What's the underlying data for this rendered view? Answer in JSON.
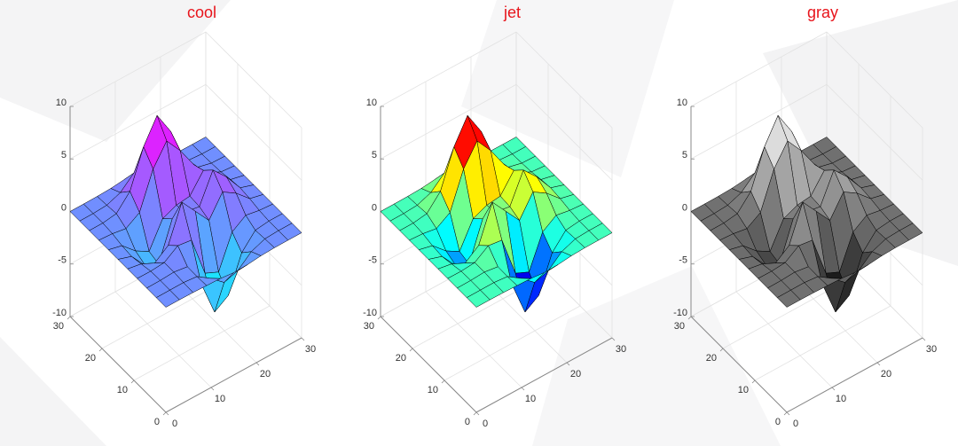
{
  "chart_data": [
    {
      "type": "surface",
      "title": "cool",
      "colormap": "cool",
      "x": [
        0,
        3,
        6,
        9,
        12,
        15,
        18,
        21,
        24,
        27,
        30
      ],
      "y": [
        0,
        3,
        6,
        9,
        12,
        15,
        18,
        21,
        24,
        27,
        30
      ],
      "z": [
        [
          0,
          0,
          -0.02,
          -0.07,
          -0.11,
          -0.25,
          -0.21,
          -0.07,
          -0.01,
          0,
          0
        ],
        [
          0,
          0.01,
          0.02,
          -0.12,
          -1.0,
          -2.09,
          -1.7,
          -0.58,
          -0.08,
          0,
          0
        ],
        [
          0,
          0.02,
          0.1,
          -0.09,
          -2.38,
          -5.83,
          -4.97,
          -1.6,
          -0.17,
          0,
          0
        ],
        [
          0,
          -0.02,
          0.1,
          1.0,
          0.81,
          -3.05,
          -3.64,
          -0.54,
          0.35,
          0.1,
          0
        ],
        [
          0,
          -0.24,
          -0.86,
          0.12,
          3.52,
          1.93,
          0.36,
          2.36,
          1.54,
          0.31,
          0
        ],
        [
          0,
          -0.43,
          -1.98,
          -2.58,
          1.02,
          0.98,
          0.77,
          3.54,
          2.17,
          0.43,
          0
        ],
        [
          0,
          -0.32,
          -1.53,
          -2.29,
          0.13,
          0.69,
          0.85,
          2.59,
          1.52,
          0.3,
          0
        ],
        [
          0,
          -0.09,
          -0.31,
          0.51,
          3.93,
          5.9,
          4.27,
          2.23,
          0.74,
          0.12,
          0
        ],
        [
          0,
          0.01,
          0.2,
          1.61,
          5.14,
          7.41,
          5.2,
          1.89,
          0.37,
          0.04,
          0
        ],
        [
          0,
          0.01,
          0.09,
          0.58,
          1.75,
          2.51,
          1.75,
          0.61,
          0.11,
          0,
          0
        ],
        [
          0,
          0,
          0.02,
          0.07,
          0.21,
          0.3,
          0.21,
          0.07,
          0.01,
          0,
          0
        ]
      ],
      "xlim": [
        0,
        30
      ],
      "ylim": [
        0,
        30
      ],
      "zlim": [
        -10,
        10
      ],
      "xticks": [
        0,
        10,
        20,
        30
      ],
      "yticks": [
        0,
        10,
        20,
        30
      ],
      "zticks": [
        -10,
        -5,
        0,
        5,
        10
      ],
      "grid": true
    },
    {
      "type": "surface",
      "title": "jet",
      "colormap": "jet",
      "x": [
        0,
        3,
        6,
        9,
        12,
        15,
        18,
        21,
        24,
        27,
        30
      ],
      "y": [
        0,
        3,
        6,
        9,
        12,
        15,
        18,
        21,
        24,
        27,
        30
      ],
      "z": [
        [
          0,
          0,
          -0.02,
          -0.07,
          -0.11,
          -0.25,
          -0.21,
          -0.07,
          -0.01,
          0,
          0
        ],
        [
          0,
          0.01,
          0.02,
          -0.12,
          -1.0,
          -2.09,
          -1.7,
          -0.58,
          -0.08,
          0,
          0
        ],
        [
          0,
          0.02,
          0.1,
          -0.09,
          -2.38,
          -5.83,
          -4.97,
          -1.6,
          -0.17,
          0,
          0
        ],
        [
          0,
          -0.02,
          0.1,
          1.0,
          0.81,
          -3.05,
          -3.64,
          -0.54,
          0.35,
          0.1,
          0
        ],
        [
          0,
          -0.24,
          -0.86,
          0.12,
          3.52,
          1.93,
          0.36,
          2.36,
          1.54,
          0.31,
          0
        ],
        [
          0,
          -0.43,
          -1.98,
          -2.58,
          1.02,
          0.98,
          0.77,
          3.54,
          2.17,
          0.43,
          0
        ],
        [
          0,
          -0.32,
          -1.53,
          -2.29,
          0.13,
          0.69,
          0.85,
          2.59,
          1.52,
          0.3,
          0
        ],
        [
          0,
          -0.09,
          -0.31,
          0.51,
          3.93,
          5.9,
          4.27,
          2.23,
          0.74,
          0.12,
          0
        ],
        [
          0,
          0.01,
          0.2,
          1.61,
          5.14,
          7.41,
          5.2,
          1.89,
          0.37,
          0.04,
          0
        ],
        [
          0,
          0.01,
          0.09,
          0.58,
          1.75,
          2.51,
          1.75,
          0.61,
          0.11,
          0,
          0
        ],
        [
          0,
          0,
          0.02,
          0.07,
          0.21,
          0.3,
          0.21,
          0.07,
          0.01,
          0,
          0
        ]
      ],
      "xlim": [
        0,
        30
      ],
      "ylim": [
        0,
        30
      ],
      "zlim": [
        -10,
        10
      ],
      "xticks": [
        0,
        10,
        20,
        30
      ],
      "yticks": [
        0,
        10,
        20,
        30
      ],
      "zticks": [
        -10,
        -5,
        0,
        5,
        10
      ],
      "grid": true
    },
    {
      "type": "surface",
      "title": "gray",
      "colormap": "gray",
      "x": [
        0,
        3,
        6,
        9,
        12,
        15,
        18,
        21,
        24,
        27,
        30
      ],
      "y": [
        0,
        3,
        6,
        9,
        12,
        15,
        18,
        21,
        24,
        27,
        30
      ],
      "z": [
        [
          0,
          0,
          -0.02,
          -0.07,
          -0.11,
          -0.25,
          -0.21,
          -0.07,
          -0.01,
          0,
          0
        ],
        [
          0,
          0.01,
          0.02,
          -0.12,
          -1.0,
          -2.09,
          -1.7,
          -0.58,
          -0.08,
          0,
          0
        ],
        [
          0,
          0.02,
          0.1,
          -0.09,
          -2.38,
          -5.83,
          -4.97,
          -1.6,
          -0.17,
          0,
          0
        ],
        [
          0,
          -0.02,
          0.1,
          1.0,
          0.81,
          -3.05,
          -3.64,
          -0.54,
          0.35,
          0.1,
          0
        ],
        [
          0,
          -0.24,
          -0.86,
          0.12,
          3.52,
          1.93,
          0.36,
          2.36,
          1.54,
          0.31,
          0
        ],
        [
          0,
          -0.43,
          -1.98,
          -2.58,
          1.02,
          0.98,
          0.77,
          3.54,
          2.17,
          0.43,
          0
        ],
        [
          0,
          -0.32,
          -1.53,
          -2.29,
          0.13,
          0.69,
          0.85,
          2.59,
          1.52,
          0.3,
          0
        ],
        [
          0,
          -0.09,
          -0.31,
          0.51,
          3.93,
          5.9,
          4.27,
          2.23,
          0.74,
          0.12,
          0
        ],
        [
          0,
          0.01,
          0.2,
          1.61,
          5.14,
          7.41,
          5.2,
          1.89,
          0.37,
          0.04,
          0
        ],
        [
          0,
          0.01,
          0.09,
          0.58,
          1.75,
          2.51,
          1.75,
          0.61,
          0.11,
          0,
          0
        ],
        [
          0,
          0,
          0.02,
          0.07,
          0.21,
          0.3,
          0.21,
          0.07,
          0.01,
          0,
          0
        ]
      ],
      "xlim": [
        0,
        30
      ],
      "ylim": [
        0,
        30
      ],
      "zlim": [
        -10,
        10
      ],
      "xticks": [
        0,
        10,
        20,
        30
      ],
      "yticks": [
        0,
        10,
        20,
        30
      ],
      "zticks": [
        -10,
        -5,
        0,
        5,
        10
      ],
      "grid": true
    }
  ]
}
